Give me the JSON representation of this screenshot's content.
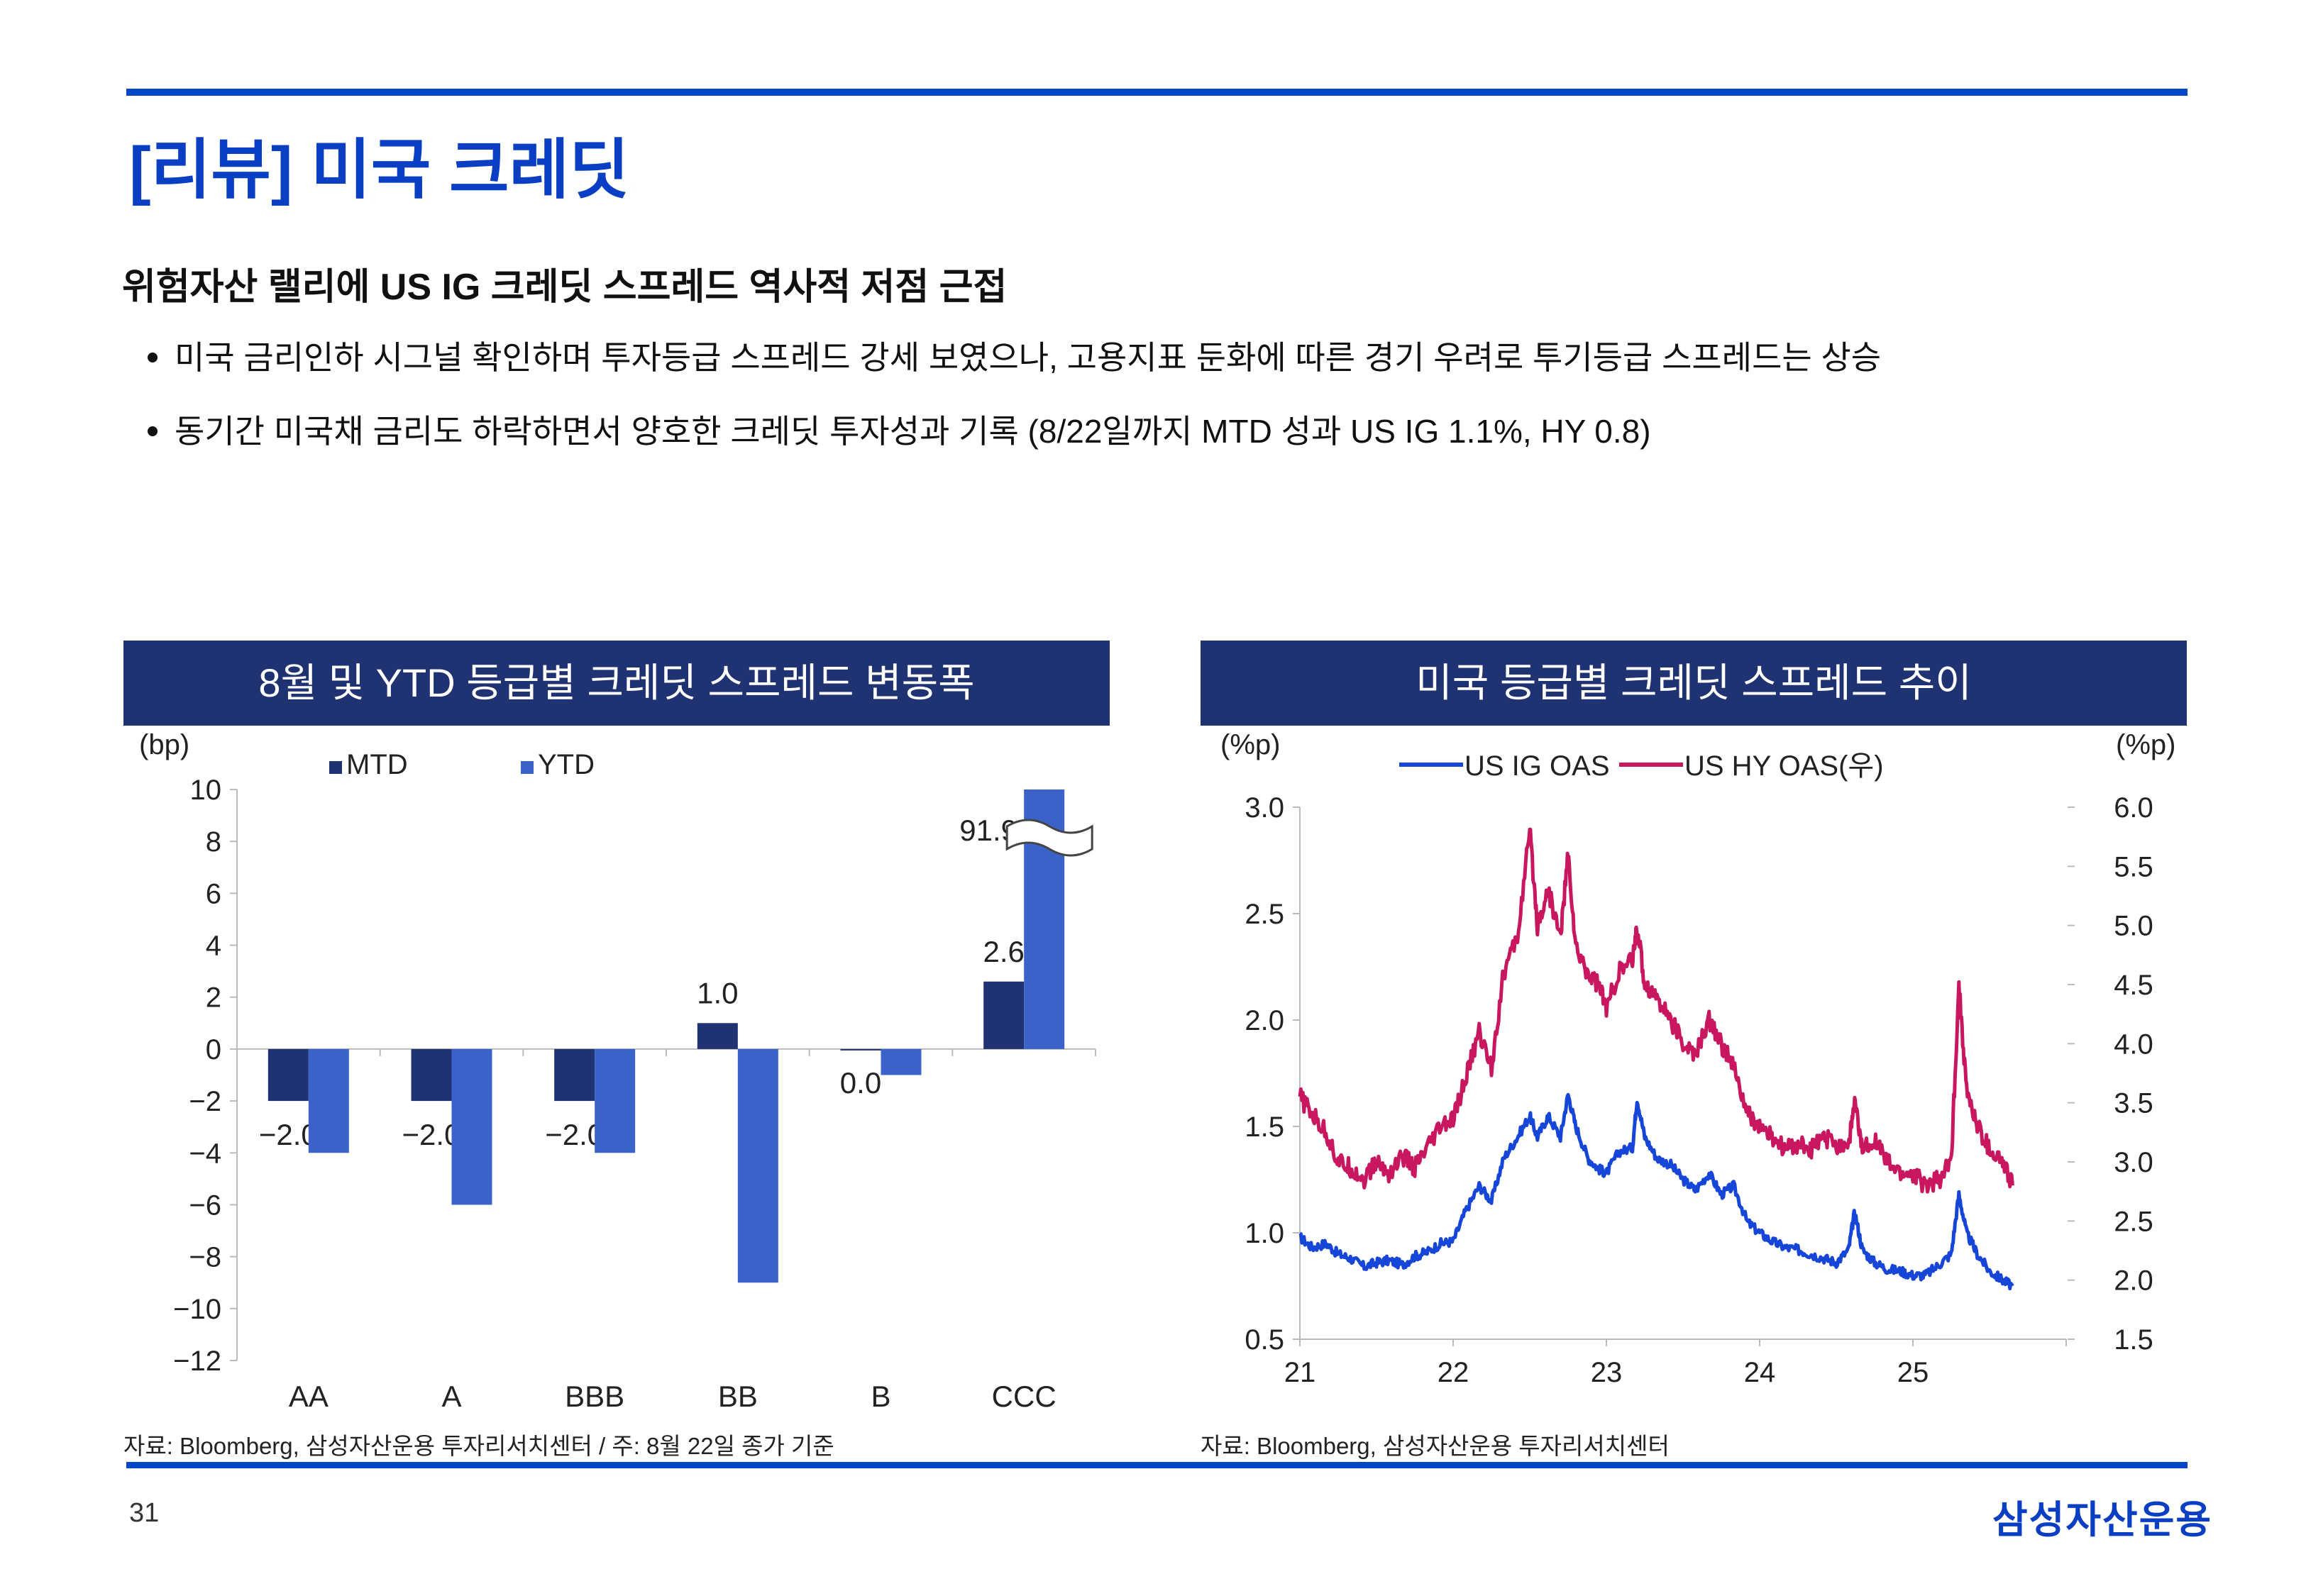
{
  "page": {
    "title": "[리뷰] 미국 크레딧",
    "subtitle": "위험자산 랠리에 US IG 크레딧 스프레드 역사적 저점 근접",
    "bullets": [
      "미국 금리인하 시그널 확인하며 투자등급 스프레드 강세 보였으나, 고용지표 둔화에 따른 경기 우려로 투기등급 스프레드는 상승",
      "동기간 미국채 금리도 하락하면서 양호한 크레딧 투자성과 기록 (8/22일까지 MTD 성과 US IG 1.1%, HY 0.8)"
    ],
    "page_number": "31",
    "logo_text": "삼성자산운용",
    "colors": {
      "accent": "#0047c8",
      "header_bg": "#1f3271",
      "mtd": "#1f3271",
      "ytd": "#3a62c8",
      "ig": "#1646d8",
      "hy": "#c8175f"
    }
  },
  "panels": {
    "left": {
      "header": "8월 및 YTD 등급별 크레딧 스프레드 변동폭",
      "source": "자료: Bloomberg, 삼성자산운용 투자리서치센터 / 주: 8월 22일 종가 기준"
    },
    "right": {
      "header": "미국 등급별 크레딧 스프레드 추이",
      "source": "자료: Bloomberg, 삼성자산운용 투자리서치센터"
    }
  },
  "chart_data": [
    {
      "type": "bar",
      "ylabel": "(bp)",
      "ylim": [
        -12,
        10
      ],
      "yticks": [
        10,
        8,
        6,
        4,
        2,
        0,
        -2,
        -4,
        -6,
        -8,
        -10,
        -12
      ],
      "categories": [
        "AA",
        "A",
        "BBB",
        "BB",
        "B",
        "CCC"
      ],
      "series": [
        {
          "name": "MTD",
          "values": [
            -2.0,
            -2.0,
            -2.0,
            1.0,
            0.0,
            2.6
          ],
          "labels": [
            "-2.0",
            "-2.0",
            "-2.0",
            "1.0",
            "0.0",
            "2.6"
          ]
        },
        {
          "name": "YTD",
          "values": [
            -4.0,
            -6.0,
            -4.0,
            -9.0,
            -1.0,
            91.9
          ],
          "labels": [
            "",
            "",
            "",
            "",
            "",
            "91.9"
          ]
        }
      ],
      "axis_break": "CCC YTD bar truncated at 10",
      "legend": "top"
    },
    {
      "type": "line",
      "ylabel_left": "(%p)",
      "ylabel_right": "(%p)",
      "ylim_left": [
        0.5,
        3.0
      ],
      "ylim_right": [
        1.5,
        6.0
      ],
      "yticks_left": [
        "3.0",
        "2.5",
        "2.0",
        "1.5",
        "1.0",
        "0.5"
      ],
      "yticks_right": [
        "6.0",
        "5.5",
        "5.0",
        "4.5",
        "4.0",
        "3.5",
        "3.0",
        "2.5",
        "2.0",
        "1.5"
      ],
      "x_ticks": [
        "21",
        "22",
        "23",
        "24",
        "25"
      ],
      "xlim": [
        2021.0,
        2026.0
      ],
      "legend": "top",
      "series": [
        {
          "name": "US IG OAS",
          "axis": "left",
          "x": [
            2021.0,
            2021.08,
            2021.17,
            2021.25,
            2021.33,
            2021.42,
            2021.5,
            2021.58,
            2021.67,
            2021.75,
            2021.83,
            2021.92,
            2022.0,
            2022.08,
            2022.17,
            2022.25,
            2022.33,
            2022.42,
            2022.5,
            2022.55,
            2022.62,
            2022.7,
            2022.75,
            2022.8,
            2022.88,
            2022.95,
            2023.0,
            2023.08,
            2023.17,
            2023.2,
            2023.25,
            2023.33,
            2023.42,
            2023.5,
            2023.58,
            2023.67,
            2023.75,
            2023.83,
            2023.92,
            2024.0,
            2024.08,
            2024.17,
            2024.25,
            2024.33,
            2024.42,
            2024.5,
            2024.58,
            2024.62,
            2024.67,
            2024.75,
            2024.83,
            2024.92,
            2025.0,
            2025.08,
            2025.17,
            2025.25,
            2025.3,
            2025.35,
            2025.42,
            2025.5,
            2025.58,
            2025.65
          ],
          "values": [
            0.98,
            0.93,
            0.95,
            0.9,
            0.88,
            0.84,
            0.86,
            0.87,
            0.85,
            0.89,
            0.91,
            0.95,
            0.96,
            1.1,
            1.22,
            1.15,
            1.35,
            1.45,
            1.55,
            1.45,
            1.55,
            1.45,
            1.65,
            1.5,
            1.35,
            1.3,
            1.28,
            1.38,
            1.4,
            1.63,
            1.45,
            1.35,
            1.32,
            1.25,
            1.2,
            1.28,
            1.18,
            1.22,
            1.05,
            1.0,
            0.96,
            0.93,
            0.92,
            0.9,
            0.88,
            0.86,
            0.92,
            1.1,
            0.92,
            0.86,
            0.83,
            0.82,
            0.8,
            0.8,
            0.85,
            0.9,
            1.18,
            1.0,
            0.9,
            0.82,
            0.78,
            0.75
          ]
        },
        {
          "name": "US HY OAS(우)",
          "axis": "right",
          "x": [
            2021.0,
            2021.08,
            2021.17,
            2021.25,
            2021.33,
            2021.42,
            2021.5,
            2021.58,
            2021.67,
            2021.75,
            2021.83,
            2021.92,
            2022.0,
            2022.08,
            2022.17,
            2022.25,
            2022.33,
            2022.42,
            2022.5,
            2022.55,
            2022.62,
            2022.7,
            2022.75,
            2022.8,
            2022.88,
            2022.95,
            2023.0,
            2023.08,
            2023.17,
            2023.2,
            2023.25,
            2023.33,
            2023.42,
            2023.5,
            2023.58,
            2023.67,
            2023.75,
            2023.83,
            2023.92,
            2024.0,
            2024.08,
            2024.17,
            2024.25,
            2024.33,
            2024.42,
            2024.5,
            2024.58,
            2024.62,
            2024.67,
            2024.75,
            2024.83,
            2024.92,
            2025.0,
            2025.08,
            2025.17,
            2025.25,
            2025.3,
            2025.35,
            2025.42,
            2025.5,
            2025.58,
            2025.65
          ],
          "values": [
            3.55,
            3.4,
            3.25,
            3.0,
            2.95,
            2.85,
            3.0,
            2.9,
            3.05,
            2.95,
            3.1,
            3.3,
            3.35,
            3.7,
            4.1,
            3.8,
            4.6,
            4.9,
            5.8,
            5.0,
            5.3,
            4.9,
            5.6,
            4.8,
            4.6,
            4.5,
            4.3,
            4.6,
            4.7,
            5.0,
            4.5,
            4.4,
            4.2,
            4.0,
            3.9,
            4.2,
            4.0,
            3.8,
            3.4,
            3.3,
            3.2,
            3.1,
            3.15,
            3.1,
            3.2,
            3.15,
            3.15,
            3.5,
            3.1,
            3.2,
            3.0,
            2.9,
            2.9,
            2.8,
            2.85,
            3.0,
            4.5,
            3.6,
            3.3,
            3.1,
            3.0,
            2.8
          ]
        }
      ]
    }
  ]
}
